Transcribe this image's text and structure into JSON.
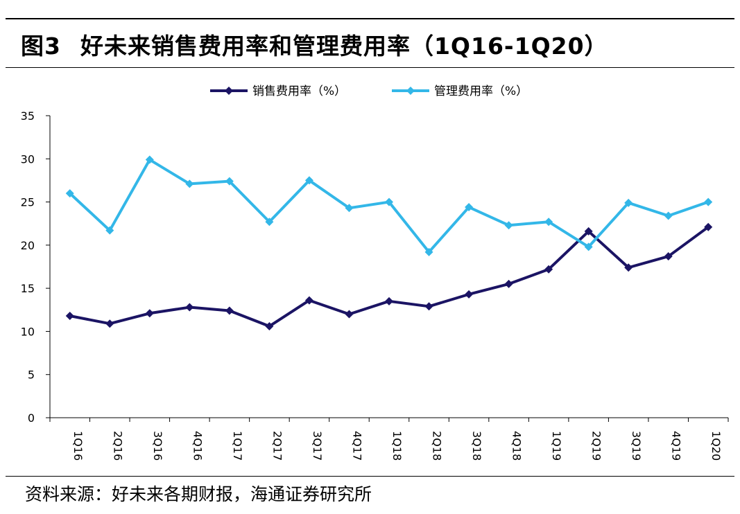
{
  "header": {
    "figure_label": "图3",
    "title": "好未来销售费用率和管理费用率（1Q16-1Q20）"
  },
  "source": "资料来源：好未来各期财报，海通证券研究所",
  "colors": {
    "selling": "#1b1464",
    "admin": "#33b7e8"
  },
  "chart_data": {
    "type": "line",
    "categories": [
      "1Q16",
      "2Q16",
      "3Q16",
      "4Q16",
      "1Q17",
      "2Q17",
      "3Q17",
      "4Q17",
      "1Q18",
      "2Q18",
      "3Q18",
      "4Q18",
      "1Q19",
      "2Q19",
      "3Q19",
      "4Q19",
      "1Q20"
    ],
    "series": [
      {
        "name": "销售费用率（%）",
        "color": "#1b1464",
        "values": [
          11.8,
          10.9,
          12.1,
          12.8,
          12.4,
          10.6,
          13.6,
          12.0,
          13.5,
          12.9,
          14.3,
          15.5,
          17.2,
          21.6,
          17.4,
          18.7,
          22.1
        ]
      },
      {
        "name": "管理费用率（%）",
        "color": "#33b7e8",
        "values": [
          26.0,
          21.7,
          29.9,
          27.1,
          27.4,
          22.7,
          27.5,
          24.3,
          25.0,
          19.2,
          24.4,
          22.3,
          22.7,
          19.8,
          24.9,
          23.4,
          25.0
        ]
      }
    ],
    "yticks": [
      "0",
      "5",
      "10",
      "15",
      "20",
      "25",
      "30",
      "35"
    ],
    "ylim": [
      0,
      35
    ],
    "grid": false,
    "legend_position": "top-center"
  }
}
